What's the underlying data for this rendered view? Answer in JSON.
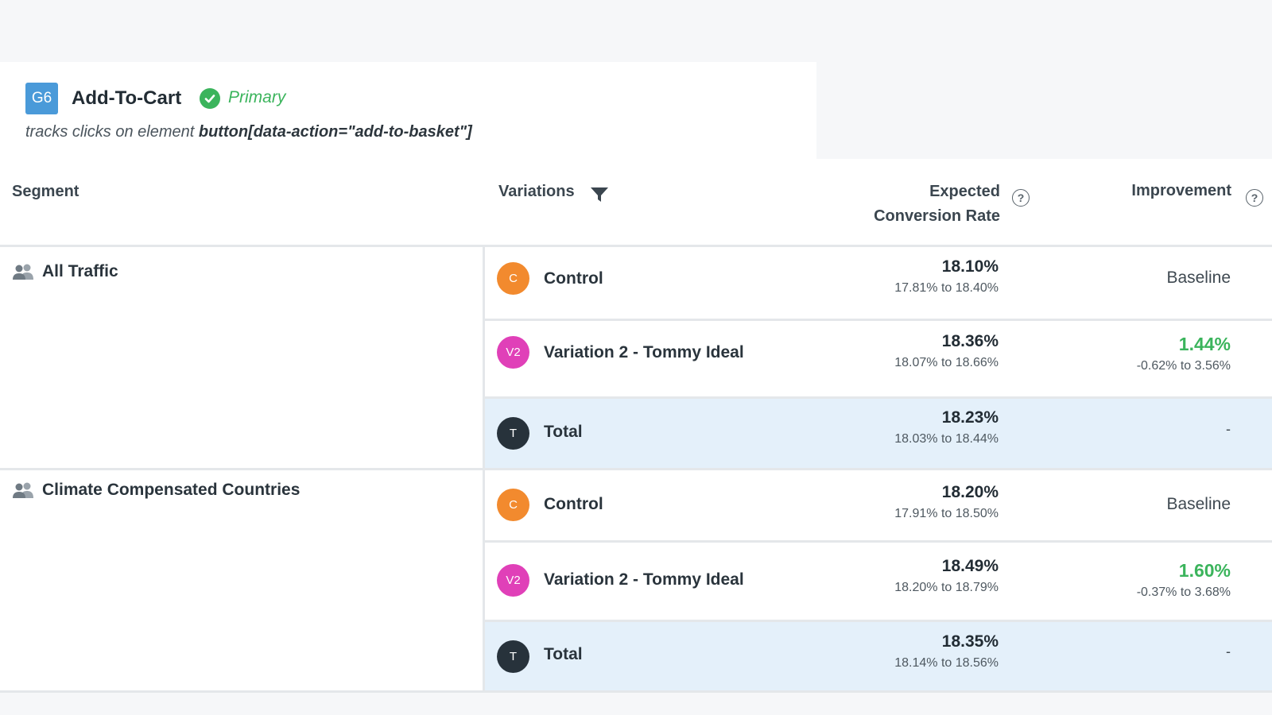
{
  "goal": {
    "badge": "G6",
    "title": "Add-To-Cart",
    "status": "Primary",
    "description_prefix": "tracks clicks on element ",
    "description_selector": "button[data-action=\"add-to-basket\"]"
  },
  "table": {
    "headers": {
      "segment": "Segment",
      "variations": "Variations",
      "rate_line1": "Expected",
      "rate_line2": "Conversion Rate",
      "improvement": "Improvement"
    },
    "help_glyph": "?",
    "colors": {
      "control": "#f28a2e",
      "variation2": "#e040b8",
      "total": "#27323b",
      "positive": "#3bb45c",
      "total_row_bg": "#e4f0fa"
    },
    "segments": [
      {
        "name": "All Traffic",
        "rows": [
          {
            "badge": "C",
            "name": "Control",
            "rate": "18.10%",
            "range": "17.81% to 18.40%",
            "improvement": "Baseline"
          },
          {
            "badge": "V2",
            "name": "Variation 2 - Tommy Ideal",
            "rate": "18.36%",
            "range": "18.07% to 18.66%",
            "improvement": "1.44%",
            "improvement_range": "-0.62% to 3.56%"
          },
          {
            "badge": "T",
            "name": "Total",
            "rate": "18.23%",
            "range": "18.03% to 18.44%",
            "improvement": "-"
          }
        ]
      },
      {
        "name": "Climate Compensated Countries",
        "rows": [
          {
            "badge": "C",
            "name": "Control",
            "rate": "18.20%",
            "range": "17.91% to 18.50%",
            "improvement": "Baseline"
          },
          {
            "badge": "V2",
            "name": "Variation 2 - Tommy Ideal",
            "rate": "18.49%",
            "range": "18.20% to 18.79%",
            "improvement": "1.60%",
            "improvement_range": "-0.37% to 3.68%"
          },
          {
            "badge": "T",
            "name": "Total",
            "rate": "18.35%",
            "range": "18.14% to 18.56%",
            "improvement": "-"
          }
        ]
      }
    ]
  }
}
